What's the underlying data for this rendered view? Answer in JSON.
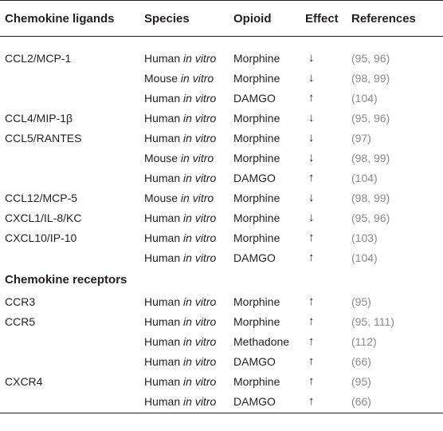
{
  "headers": {
    "ligands": "Chemokine ligands",
    "species": "Species",
    "opioid": "Opioid",
    "effect": "Effect",
    "references": "References"
  },
  "section_receptors": "Chemokine receptors",
  "species_suffix": "in vitro",
  "rows": [
    {
      "name": "CCL2/MCP-1",
      "species": "Human",
      "opioid": "Morphine",
      "effect": "↓",
      "refs": "(95, 96)"
    },
    {
      "name": "",
      "species": "Mouse",
      "opioid": "Morphine",
      "effect": "↓",
      "refs": "(98, 99)"
    },
    {
      "name": "",
      "species": "Human",
      "opioid": "DAMGO",
      "effect": "↑",
      "refs": "(104)"
    },
    {
      "name": "CCL4/MIP-1β",
      "species": "Human",
      "opioid": "Morphine",
      "effect": "↓",
      "refs": "(95, 96)"
    },
    {
      "name": "CCL5/RANTES",
      "species": "Human",
      "opioid": "Morphine",
      "effect": "↓",
      "refs": "(97)"
    },
    {
      "name": "",
      "species": "Mouse",
      "opioid": "Morphine",
      "effect": "↓",
      "refs": "(98, 99)"
    },
    {
      "name": "",
      "species": "Human",
      "opioid": "DAMGO",
      "effect": "↑",
      "refs": "(104)"
    },
    {
      "name": "CCL12/MCP-5",
      "species": "Mouse",
      "opioid": "Morphine",
      "effect": "↓",
      "refs": "(98, 99)"
    },
    {
      "name": "CXCL1/IL-8/KC",
      "species": "Human",
      "opioid": "Morphine",
      "effect": "↓",
      "refs": "(95, 96)"
    },
    {
      "name": "CXCL10/IP-10",
      "species": "Human",
      "opioid": "Morphine",
      "effect": "↑",
      "refs": "(103)"
    },
    {
      "name": "",
      "species": "Human",
      "opioid": "DAMGO",
      "effect": "↑",
      "refs": "(104)"
    }
  ],
  "receptor_rows": [
    {
      "name": "CCR3",
      "species": "Human",
      "opioid": "Morphine",
      "effect": "↑",
      "refs": "(95)"
    },
    {
      "name": "CCR5",
      "species": "Human",
      "opioid": "Morphine",
      "effect": "↑",
      "refs": "(95, 111)"
    },
    {
      "name": "",
      "species": "Human",
      "opioid": "Methadone",
      "effect": "↑",
      "refs": "(112)"
    },
    {
      "name": "",
      "species": "Human",
      "opioid": "DAMGO",
      "effect": "↑",
      "refs": "(66)"
    },
    {
      "name": "CXCR4",
      "species": "Human",
      "opioid": "Morphine",
      "effect": "↑",
      "refs": "(95)"
    },
    {
      "name": "",
      "species": "Human",
      "opioid": "DAMGO",
      "effect": "↑",
      "refs": "(66)"
    }
  ]
}
